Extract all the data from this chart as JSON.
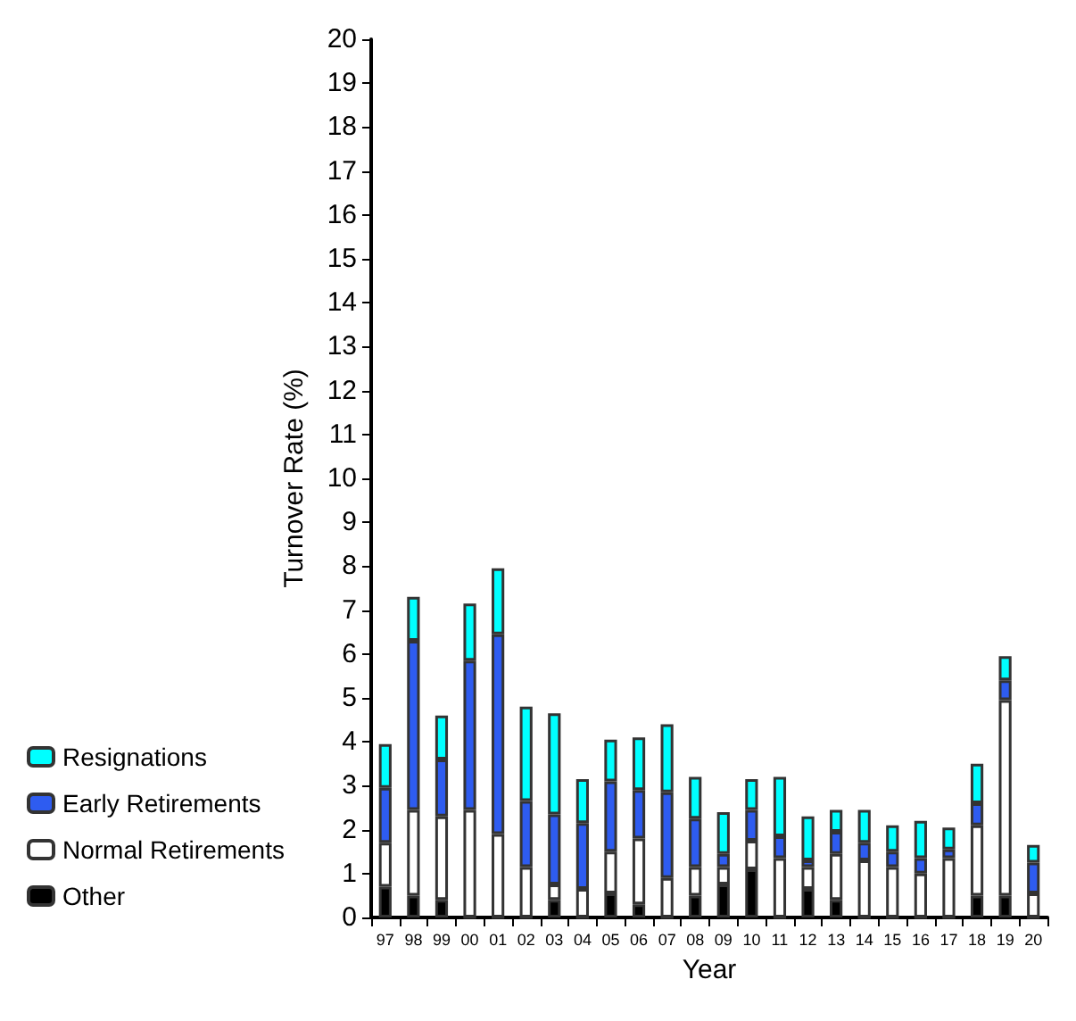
{
  "chart_data": {
    "type": "bar",
    "stacked": true,
    "xlabel": "Year",
    "ylabel": "Turnover Rate (%)",
    "categories": [
      "97",
      "98",
      "99",
      "00",
      "01",
      "02",
      "03",
      "04",
      "05",
      "06",
      "07",
      "08",
      "09",
      "10",
      "11",
      "12",
      "13",
      "14",
      "15",
      "16",
      "17",
      "18",
      "19",
      "20"
    ],
    "series": [
      {
        "name": "Other",
        "color": "#000000",
        "values": [
          0.7,
          0.5,
          0.4,
          0,
          0,
          0,
          0.4,
          0,
          0.55,
          0.3,
          0,
          0.5,
          0.75,
          1.1,
          0,
          0.65,
          0.4,
          0,
          0,
          0,
          0,
          0.5,
          0.5,
          0
        ]
      },
      {
        "name": "Normal Retirements",
        "color": "#ffffff",
        "values": [
          1.0,
          1.95,
          1.9,
          2.45,
          1.9,
          1.15,
          0.35,
          0.65,
          0.95,
          1.5,
          0.9,
          0.65,
          0.4,
          0.65,
          1.35,
          0.5,
          1.05,
          1.3,
          1.15,
          1.0,
          1.35,
          1.6,
          4.45,
          0.55
        ]
      },
      {
        "name": "Early Retirements",
        "color": "#2e5cf0",
        "values": [
          1.25,
          3.85,
          1.3,
          3.4,
          4.55,
          1.5,
          1.6,
          1.5,
          1.6,
          1.1,
          1.95,
          1.1,
          0.3,
          0.7,
          0.5,
          0.15,
          0.5,
          0.4,
          0.35,
          0.35,
          0.2,
          0.5,
          0.45,
          0.7
        ]
      },
      {
        "name": "Resignations",
        "color": "#00ffff",
        "values": [
          1.0,
          1.0,
          1.0,
          1.3,
          1.5,
          2.15,
          2.3,
          1.0,
          0.95,
          1.2,
          1.55,
          0.95,
          0.95,
          0.7,
          1.35,
          1.0,
          0.5,
          0.75,
          0.6,
          0.85,
          0.5,
          0.9,
          0.55,
          0.4
        ]
      }
    ],
    "ylim": [
      0,
      20
    ],
    "yticks": [
      0,
      1,
      2,
      3,
      4,
      5,
      6,
      7,
      8,
      9,
      10,
      11,
      12,
      13,
      14,
      15,
      16,
      17,
      18,
      19,
      20
    ],
    "grid": false,
    "legend": "bottom left"
  }
}
